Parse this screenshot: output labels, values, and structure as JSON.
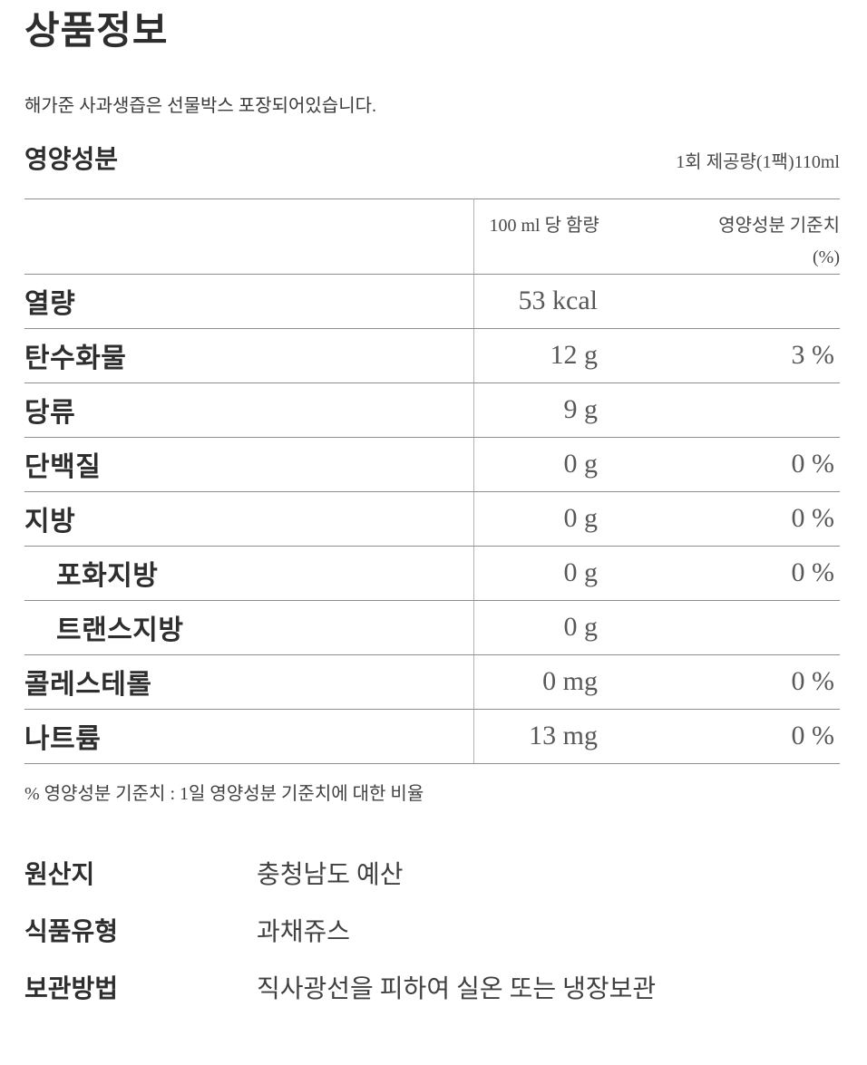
{
  "page": {
    "title": "상품정보",
    "description": "해가준 사과생즙은 선물박스 포장되어있습니다."
  },
  "nutrition": {
    "heading": "영양성분",
    "serving_note": "1회 제공량(1팩)110ml",
    "columns": {
      "amount": "100 ml 당 함량",
      "daily_value_line1": "영양성분 기준치",
      "daily_value_line2": "(%)"
    },
    "rows": [
      {
        "label": "열량",
        "amount": "53 kcal",
        "percent": "",
        "indent": false
      },
      {
        "label": "탄수화물",
        "amount": "12 g",
        "percent": "3 %",
        "indent": false
      },
      {
        "label": "당류",
        "amount": "9 g",
        "percent": "",
        "indent": false
      },
      {
        "label": "단백질",
        "amount": "0 g",
        "percent": "0 %",
        "indent": false
      },
      {
        "label": "지방",
        "amount": "0 g",
        "percent": "0 %",
        "indent": false
      },
      {
        "label": "포화지방",
        "amount": "0 g",
        "percent": "0 %",
        "indent": true
      },
      {
        "label": "트랜스지방",
        "amount": "0 g",
        "percent": "",
        "indent": true
      },
      {
        "label": "콜레스테롤",
        "amount": "0 mg",
        "percent": "0 %",
        "indent": false
      },
      {
        "label": "나트륨",
        "amount": "13 mg",
        "percent": "0 %",
        "indent": false
      }
    ],
    "footnote": "% 영양성분 기준치 : 1일 영양성분 기준치에 대한 비율"
  },
  "details": [
    {
      "label": "원산지",
      "value": "충청남도 예산"
    },
    {
      "label": "식품유형",
      "value": "과채쥬스"
    },
    {
      "label": "보관방법",
      "value": "직사광선을 피하여 실온 또는 냉장보관"
    }
  ],
  "colors": {
    "heading_text": "#2e2e2e",
    "body_text": "#3f3f3f",
    "value_text": "#58585a",
    "row_border": "#8e8e8e",
    "column_divider": "#b3b3b3",
    "background": "#ffffff"
  }
}
